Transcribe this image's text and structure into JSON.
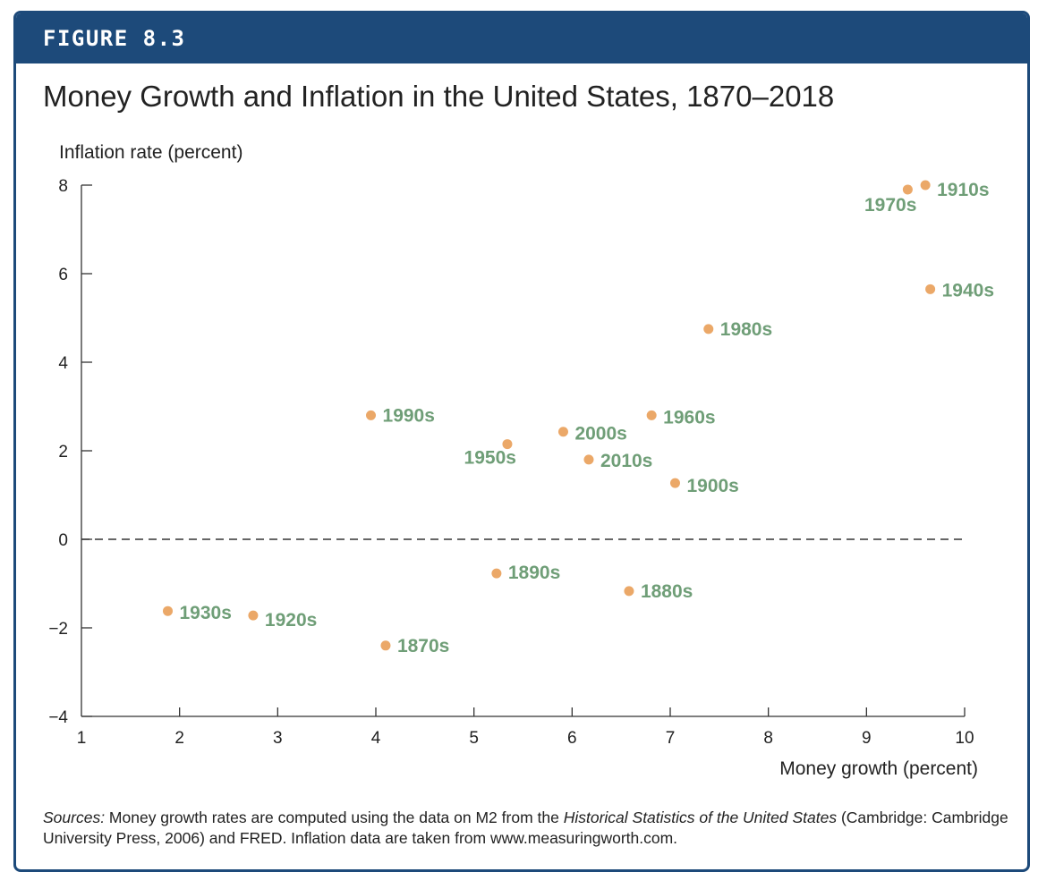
{
  "figure_label": "FIGURE 8.3",
  "chart_data": {
    "type": "scatter",
    "title": "Money Growth and Inflation in the United States, 1870–2018",
    "xlabel": "Money growth (percent)",
    "ylabel": "Inflation rate (percent)",
    "xlim": [
      1,
      10
    ],
    "ylim": [
      -4,
      8
    ],
    "x_ticks": [
      "1",
      "2",
      "3",
      "4",
      "5",
      "6",
      "7",
      "8",
      "9",
      "10"
    ],
    "y_ticks": [
      "8",
      "6",
      "4",
      "2",
      "0",
      "−2",
      "−4"
    ],
    "reference_line": {
      "y": 0,
      "style": "dashed"
    },
    "point_color": "#eba868",
    "label_color": "#6f9e77",
    "points": [
      {
        "label": "1870s",
        "x": 4.1,
        "y": -2.4
      },
      {
        "label": "1880s",
        "x": 6.58,
        "y": -1.17
      },
      {
        "label": "1890s",
        "x": 5.23,
        "y": -0.77
      },
      {
        "label": "1900s",
        "x": 7.05,
        "y": 1.27
      },
      {
        "label": "1910s",
        "x": 9.6,
        "y": 8.0
      },
      {
        "label": "1920s",
        "x": 2.75,
        "y": -1.72
      },
      {
        "label": "1930s",
        "x": 1.88,
        "y": -1.62
      },
      {
        "label": "1940s",
        "x": 9.65,
        "y": 5.65
      },
      {
        "label": "1950s",
        "x": 5.34,
        "y": 2.15
      },
      {
        "label": "1960s",
        "x": 6.81,
        "y": 2.8
      },
      {
        "label": "1970s",
        "x": 9.42,
        "y": 7.9
      },
      {
        "label": "1980s",
        "x": 7.39,
        "y": 4.75
      },
      {
        "label": "1990s",
        "x": 3.95,
        "y": 2.8
      },
      {
        "label": "2000s",
        "x": 5.91,
        "y": 2.43
      },
      {
        "label": "2010s",
        "x": 6.17,
        "y": 1.8
      }
    ]
  },
  "sources": {
    "label": "Sources:",
    "text1": " Money growth rates are computed using the data on M2 from the ",
    "book": "Historical Statistics of the United States",
    "text2": " (Cambridge: Cambridge University Press, 2006) and FRED. Inflation data are taken from www.measuringworth.com."
  }
}
